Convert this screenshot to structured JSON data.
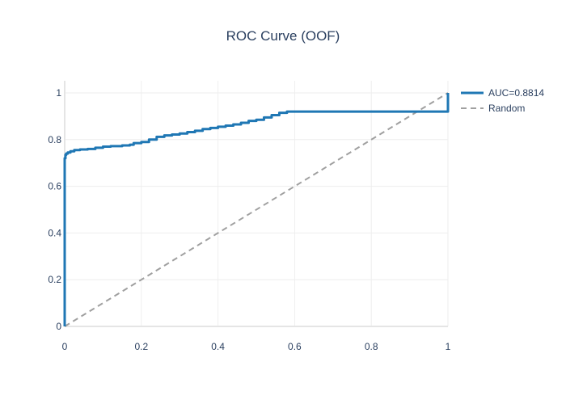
{
  "chart_data": {
    "type": "line",
    "title": "ROC Curve (OOF)",
    "xlabel": "",
    "ylabel": "",
    "xlim": [
      0,
      1
    ],
    "ylim": [
      0,
      1
    ],
    "grid": true,
    "legend_position": "top-right outside",
    "x_ticks": [
      0,
      0.2,
      0.4,
      0.6,
      0.8,
      1
    ],
    "x_tick_labels": [
      "0",
      "0.2",
      "0.4",
      "0.6",
      "0.8",
      "1"
    ],
    "y_ticks": [
      0,
      0.2,
      0.4,
      0.6,
      0.8,
      1
    ],
    "y_tick_labels": [
      "0",
      "0.2",
      "0.4",
      "0.6",
      "0.8",
      "1"
    ],
    "series": [
      {
        "name": "AUC=0.8814",
        "color": "#1f77b4",
        "style": "solid",
        "x": [
          0,
          0,
          0.002,
          0.004,
          0.008,
          0.015,
          0.025,
          0.04,
          0.06,
          0.08,
          0.1,
          0.12,
          0.15,
          0.17,
          0.18,
          0.2,
          0.22,
          0.24,
          0.26,
          0.28,
          0.3,
          0.32,
          0.34,
          0.36,
          0.38,
          0.4,
          0.42,
          0.44,
          0.46,
          0.48,
          0.5,
          0.52,
          0.54,
          0.56,
          0.58,
          1.0
        ],
        "y": [
          0,
          0.72,
          0.735,
          0.74,
          0.745,
          0.75,
          0.755,
          0.758,
          0.76,
          0.765,
          0.77,
          0.772,
          0.775,
          0.778,
          0.785,
          0.79,
          0.8,
          0.812,
          0.818,
          0.822,
          0.826,
          0.832,
          0.838,
          0.845,
          0.85,
          0.855,
          0.86,
          0.865,
          0.872,
          0.88,
          0.885,
          0.895,
          0.905,
          0.915,
          0.92,
          1.0
        ]
      },
      {
        "name": "Random",
        "color": "#a0a0a0",
        "style": "dashed",
        "x": [
          0,
          1
        ],
        "y": [
          0,
          1
        ]
      }
    ]
  }
}
